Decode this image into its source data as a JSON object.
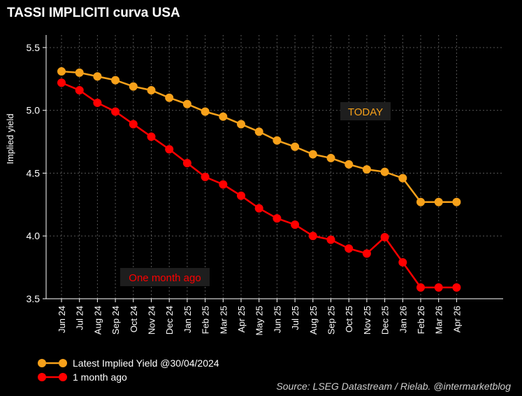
{
  "title": "TASSI IMPLICITI curva USA",
  "source": "Source: LSEG Datastream / Rielab. @intermarketblog",
  "colors": {
    "latest": "#f7a11a",
    "month_ago": "#ff0000",
    "background": "#000000",
    "grid": "#555555"
  },
  "chart_data": {
    "type": "line",
    "ylabel": "Implied yield",
    "ylim": [
      3.5,
      5.6
    ],
    "yticks": [
      3.5,
      4.0,
      4.5,
      5.0,
      5.5
    ],
    "ytick_labels": [
      "3.5",
      "4.0",
      "4.5",
      "5.0",
      "5.5"
    ],
    "categories": [
      "Jun 24",
      "Jul 24",
      "Aug 24",
      "Sep 24",
      "Oct 24",
      "Nov 24",
      "Dec 24",
      "Jan 25",
      "Feb 25",
      "Mar 25",
      "Apr 25",
      "May 25",
      "Jun 25",
      "Jul 25",
      "Aug 25",
      "Sep 25",
      "Oct 25",
      "Nov 25",
      "Dec 25",
      "Jan 26",
      "Feb 26",
      "Mar 26",
      "Apr 26"
    ],
    "grid": true,
    "series": [
      {
        "name": "Latest Implied Yield @30/04/2024",
        "color": "#f7a11a",
        "values": [
          5.31,
          5.3,
          5.27,
          5.24,
          5.19,
          5.16,
          5.1,
          5.05,
          4.99,
          4.95,
          4.89,
          4.83,
          4.76,
          4.71,
          4.65,
          4.62,
          4.57,
          4.53,
          4.51,
          4.46,
          4.27,
          4.27,
          4.27
        ]
      },
      {
        "name": "1 month ago",
        "color": "#ff0000",
        "values": [
          5.22,
          5.16,
          5.06,
          4.99,
          4.89,
          4.79,
          4.69,
          4.58,
          4.47,
          4.41,
          4.32,
          4.22,
          4.14,
          4.09,
          4.0,
          3.97,
          3.9,
          3.86,
          3.99,
          3.79,
          3.59,
          3.59,
          3.59
        ]
      }
    ],
    "annotations": [
      {
        "text": "TODAY",
        "color": "#f7a11a"
      },
      {
        "text": "One month ago",
        "color": "#ff0000"
      }
    ]
  },
  "legend": {
    "latest": "Latest Implied Yield @30/04/2024",
    "month_ago": "1 month ago"
  }
}
